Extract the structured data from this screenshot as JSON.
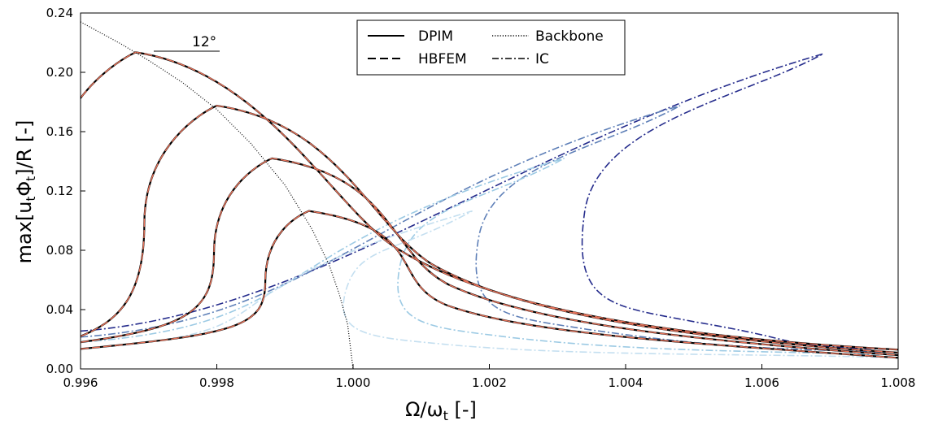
{
  "chart_data": {
    "type": "line",
    "xlabel": "Ω/ω",
    "xlabel_sub": "t",
    "xlabel_tail": " [-]",
    "ylabel_parts": [
      "max[u",
      "t",
      "Φ",
      "t",
      "]/R [-]"
    ],
    "xlim": [
      0.996,
      1.008
    ],
    "ylim": [
      0,
      0.24
    ],
    "x_ticks": [
      "0.996",
      "0.998",
      "1.000",
      "1.002",
      "1.004",
      "1.006",
      "1.008"
    ],
    "y_ticks": [
      "0.00",
      "0.04",
      "0.08",
      "0.12",
      "0.16",
      "0.20",
      "0.24"
    ],
    "grid": false,
    "legend": {
      "position": "top-center",
      "entries": [
        {
          "label": "DPIM",
          "style": "solid"
        },
        {
          "label": "Backbone",
          "style": "dotted"
        },
        {
          "label": "HBFEM",
          "style": "dashed"
        },
        {
          "label": "IC",
          "style": "dashdot"
        }
      ]
    },
    "annotation": {
      "text": "12°",
      "x": 0.9976,
      "y": 0.214
    },
    "colors": {
      "dpim": "#000000",
      "hbfem": "#e8735a",
      "backbone": "#000000",
      "ic": [
        "#c4dff0",
        "#9ccae4",
        "#5f80b8",
        "#252c8c"
      ]
    },
    "series": [
      {
        "name": "DPIM",
        "curves": [
          {
            "peak": [
              0.99681,
              0.2135
            ],
            "anchor": [
              0.996,
              0.026
            ],
            "tail": [
              1.008,
              0.013
            ]
          },
          {
            "peak": [
              0.998,
              0.1775
            ],
            "anchor": [
              0.996,
              0.022
            ],
            "tail": [
              1.008,
              0.011
            ]
          },
          {
            "peak": [
              0.99881,
              0.142
            ],
            "anchor": [
              0.996,
              0.018
            ],
            "tail": [
              1.008,
              0.0093
            ]
          },
          {
            "peak": [
              0.99935,
              0.1065
            ],
            "anchor": [
              0.996,
              0.0135
            ],
            "tail": [
              1.008,
              0.0075
            ]
          }
        ]
      },
      {
        "name": "HBFEM",
        "curves": [
          {
            "peak": [
              0.99681,
              0.2135
            ],
            "anchor": [
              0.996,
              0.026
            ],
            "tail": [
              1.008,
              0.013
            ]
          },
          {
            "peak": [
              0.998,
              0.1775
            ],
            "anchor": [
              0.996,
              0.022
            ],
            "tail": [
              1.008,
              0.011
            ]
          },
          {
            "peak": [
              0.99881,
              0.142
            ],
            "anchor": [
              0.996,
              0.018
            ],
            "tail": [
              1.008,
              0.0093
            ]
          },
          {
            "peak": [
              0.99935,
              0.1065
            ],
            "anchor": [
              0.996,
              0.0135
            ],
            "tail": [
              1.008,
              0.0075
            ]
          }
        ]
      },
      {
        "name": "Backbone",
        "points": [
          [
            0.996,
            0.234
          ],
          [
            0.9966,
            0.219
          ],
          [
            0.997,
            0.208
          ],
          [
            0.9975,
            0.193
          ],
          [
            0.998,
            0.175
          ],
          [
            0.9985,
            0.152
          ],
          [
            0.999,
            0.124
          ],
          [
            0.9994,
            0.094
          ],
          [
            0.99965,
            0.07
          ],
          [
            0.9998,
            0.05
          ],
          [
            0.99992,
            0.03
          ],
          [
            1.0,
            0.0
          ]
        ]
      },
      {
        "name": "IC",
        "curves": [
          {
            "peak": [
              1.0069,
              0.2125
            ],
            "anchor": [
              0.996,
              0.0255
            ],
            "tail": [
              1.008,
              0.013
            ]
          },
          {
            "peak": [
              1.0048,
              0.1775
            ],
            "anchor": [
              0.996,
              0.0215
            ],
            "tail": [
              1.008,
              0.011
            ]
          },
          {
            "peak": [
              1.0031,
              0.142
            ],
            "anchor": [
              0.996,
              0.018
            ],
            "tail": [
              1.008,
              0.0093
            ]
          },
          {
            "peak": [
              1.00175,
              0.1065
            ],
            "anchor": [
              0.996,
              0.0135
            ],
            "tail": [
              1.008,
              0.0075
            ]
          }
        ]
      }
    ]
  }
}
